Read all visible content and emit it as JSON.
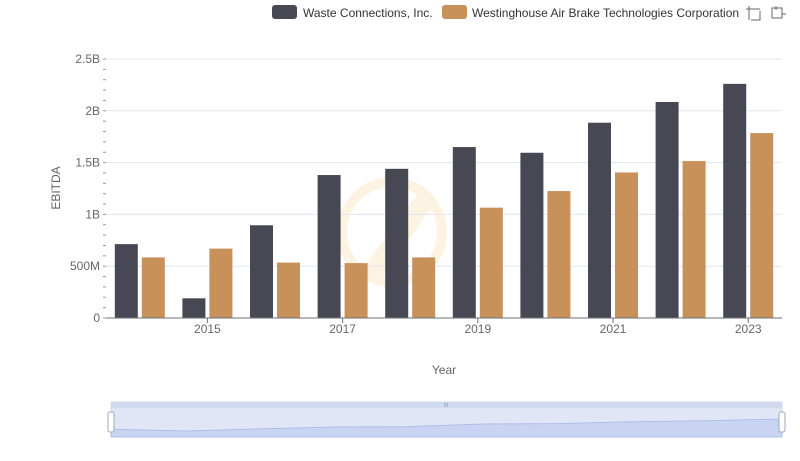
{
  "chart_data": {
    "type": "bar",
    "title": "",
    "xlabel": "Year",
    "ylabel": "EBITDA",
    "x": [
      2014,
      2015,
      2016,
      2017,
      2018,
      2019,
      2020,
      2021,
      2022,
      2023
    ],
    "x_tick_labels": [
      "2015",
      "2017",
      "2019",
      "2021",
      "2023"
    ],
    "x_tick_values": [
      2015,
      2017,
      2019,
      2021,
      2023
    ],
    "y_tick_labels": [
      "0",
      "500M",
      "1B",
      "1.5B",
      "2B",
      "2.5B"
    ],
    "y_tick_values": [
      0,
      500000000,
      1000000000,
      1500000000,
      2000000000,
      2500000000
    ],
    "ylim": [
      0,
      2500000000
    ],
    "grid": "horizontal",
    "legend_position": "top-right",
    "series": [
      {
        "name": "Waste Connections, Inc.",
        "color": "#484854",
        "values": [
          713000000,
          190000000,
          895000000,
          1380000000,
          1440000000,
          1650000000,
          1595000000,
          1885000000,
          2085000000,
          2260000000
        ]
      },
      {
        "name": "Westinghouse Air Brake Technologies Corporation",
        "color": "#c8915a",
        "values": [
          585000000,
          670000000,
          535000000,
          530000000,
          585000000,
          1065000000,
          1225000000,
          1405000000,
          1515000000,
          1785000000
        ]
      }
    ],
    "toolbox_icons": [
      "zoom-icon",
      "restore-icon"
    ],
    "data_zoom": {
      "range": [
        0,
        100
      ],
      "handle_label": "III"
    }
  }
}
